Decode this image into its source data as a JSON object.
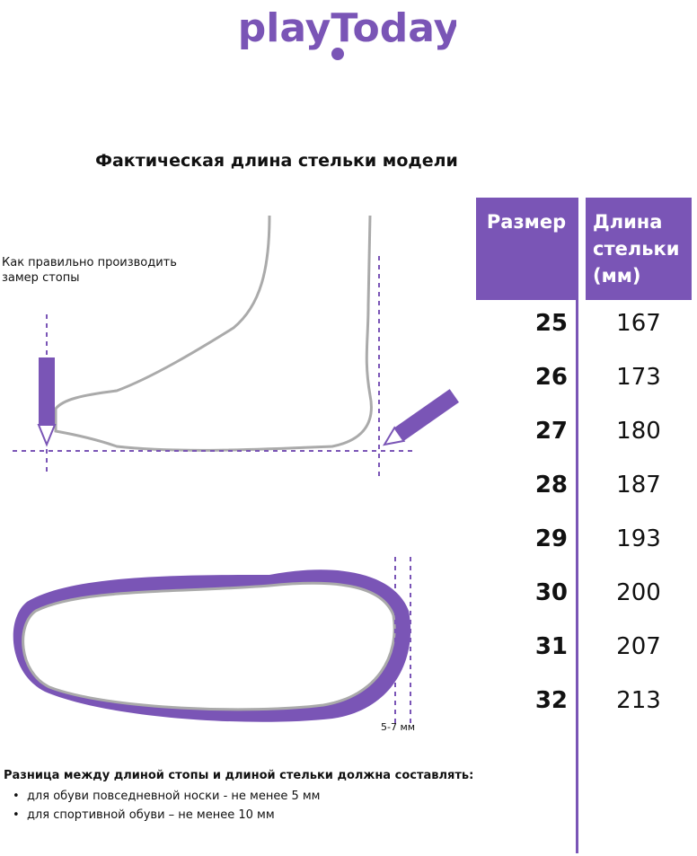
{
  "logo": {
    "text": "playToday",
    "color": "#7a55b6"
  },
  "title": "Фактическая длина стельки модели",
  "table": {
    "headers": [
      "Размер",
      "Длина стельки (мм)"
    ],
    "header_lines": [
      "Длина",
      "стельки",
      "(мм)"
    ],
    "rows": [
      {
        "size": "25",
        "length": "167"
      },
      {
        "size": "26",
        "length": "173"
      },
      {
        "size": "27",
        "length": "180"
      },
      {
        "size": "28",
        "length": "187"
      },
      {
        "size": "29",
        "length": "193"
      },
      {
        "size": "30",
        "length": "200"
      },
      {
        "size": "31",
        "length": "207"
      },
      {
        "size": "32",
        "length": "213"
      }
    ]
  },
  "instruction": {
    "line1": "Как правильно производить",
    "line2": "замер стопы"
  },
  "gap_label": "5-7 мм",
  "difference": {
    "heading": "Разница между длиной стопы и длиной стельки должна составлять:",
    "items": [
      "для обуви повседневной носки -  не менее 5 мм",
      "для спортивной обуви – не менее 10 мм"
    ]
  },
  "colors": {
    "accent": "#7a55b6",
    "outline": "#aaaaaa"
  }
}
